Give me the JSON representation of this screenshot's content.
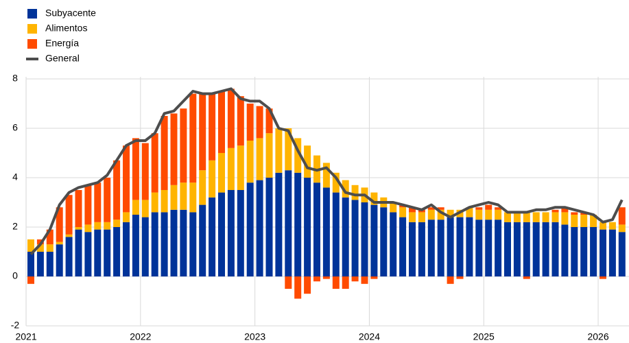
{
  "chart_data": {
    "type": "stacked-bar-line",
    "categories": [
      "2021",
      null,
      null,
      null,
      null,
      null,
      null,
      null,
      null,
      null,
      null,
      null,
      "2022",
      null,
      null,
      null,
      null,
      null,
      null,
      null,
      null,
      null,
      null,
      null,
      "2023",
      null,
      null,
      null,
      null,
      null,
      null,
      null,
      null,
      null,
      null,
      null,
      "2024",
      null,
      null,
      null,
      null,
      null,
      null,
      null,
      null,
      null,
      null,
      null,
      "2025",
      null,
      null,
      null,
      null,
      null,
      null,
      null,
      null,
      null,
      null,
      null,
      "2026",
      null,
      null
    ],
    "series": [
      {
        "name": "Subyacente",
        "color": "#003399",
        "kind": "bar",
        "values": [
          1.0,
          1.0,
          1.0,
          1.3,
          1.6,
          1.9,
          1.8,
          1.9,
          1.9,
          2.0,
          2.2,
          2.5,
          2.4,
          2.6,
          2.6,
          2.7,
          2.7,
          2.6,
          2.9,
          3.2,
          3.4,
          3.5,
          3.5,
          3.8,
          3.9,
          4.0,
          4.2,
          4.3,
          4.2,
          4.0,
          3.8,
          3.6,
          3.4,
          3.2,
          3.1,
          3.0,
          2.9,
          2.8,
          2.6,
          2.4,
          2.2,
          2.2,
          2.3,
          2.3,
          2.4,
          2.4,
          2.4,
          2.3,
          2.3,
          2.3,
          2.2,
          2.2,
          2.2,
          2.2,
          2.2,
          2.2,
          2.1,
          2.0,
          2.0,
          2.0,
          1.9,
          1.9,
          1.8
        ]
      },
      {
        "name": "Alimentos",
        "color": "#ffb400",
        "kind": "bar",
        "values": [
          0.5,
          0.3,
          0.3,
          0.1,
          0.1,
          0.1,
          0.3,
          0.3,
          0.3,
          0.3,
          0.4,
          0.6,
          0.7,
          0.8,
          0.9,
          1.0,
          1.1,
          1.2,
          1.4,
          1.5,
          1.6,
          1.7,
          1.8,
          1.7,
          1.7,
          1.8,
          1.8,
          1.7,
          1.4,
          1.3,
          1.1,
          1.0,
          0.8,
          0.7,
          0.6,
          0.6,
          0.5,
          0.4,
          0.4,
          0.4,
          0.4,
          0.4,
          0.4,
          0.4,
          0.3,
          0.3,
          0.4,
          0.4,
          0.4,
          0.4,
          0.4,
          0.4,
          0.4,
          0.4,
          0.4,
          0.4,
          0.5,
          0.5,
          0.5,
          0.5,
          0.3,
          0.3,
          0.3
        ]
      },
      {
        "name": "Energía",
        "color": "#ff4b00",
        "kind": "bar",
        "values": [
          -0.3,
          0.2,
          0.6,
          1.4,
          1.6,
          1.5,
          1.6,
          1.6,
          1.8,
          2.4,
          2.7,
          2.5,
          2.3,
          2.4,
          3.0,
          2.9,
          3.0,
          3.6,
          3.1,
          2.7,
          2.5,
          2.4,
          2.0,
          1.5,
          1.3,
          1.0,
          0.0,
          -0.5,
          -0.9,
          -0.7,
          -0.2,
          -0.1,
          -0.5,
          -0.5,
          -0.2,
          -0.3,
          -0.1,
          0.0,
          0.0,
          0.1,
          0.2,
          0.1,
          0.1,
          0.1,
          -0.3,
          -0.1,
          0.0,
          0.1,
          0.2,
          0.1,
          0.0,
          0.0,
          -0.1,
          0.0,
          0.0,
          0.1,
          0.2,
          0.1,
          0.1,
          0.0,
          -0.1,
          0.0,
          0.7
        ]
      },
      {
        "name": "General",
        "color": "#4d4d4d",
        "kind": "line",
        "values": [
          0.9,
          1.3,
          1.9,
          2.9,
          3.4,
          3.6,
          3.7,
          3.8,
          4.1,
          4.7,
          5.3,
          5.5,
          5.5,
          5.8,
          6.6,
          6.7,
          7.1,
          7.5,
          7.4,
          7.4,
          7.5,
          7.6,
          7.2,
          7.1,
          7.1,
          6.8,
          6.0,
          5.9,
          5.1,
          4.4,
          4.3,
          4.4,
          4.0,
          3.4,
          3.3,
          3.3,
          3.0,
          3.0,
          3.0,
          2.9,
          2.8,
          2.7,
          2.9,
          2.6,
          2.4,
          2.6,
          2.8,
          2.9,
          3.0,
          2.9,
          2.6,
          2.6,
          2.6,
          2.7,
          2.7,
          2.8,
          2.8,
          2.7,
          2.6,
          2.5,
          2.2,
          2.3,
          3.1
        ]
      }
    ],
    "ylim": [
      -2,
      8
    ],
    "yticks": [
      -2,
      0,
      2,
      4,
      6,
      8
    ],
    "grid": true,
    "legend": "top-left"
  }
}
